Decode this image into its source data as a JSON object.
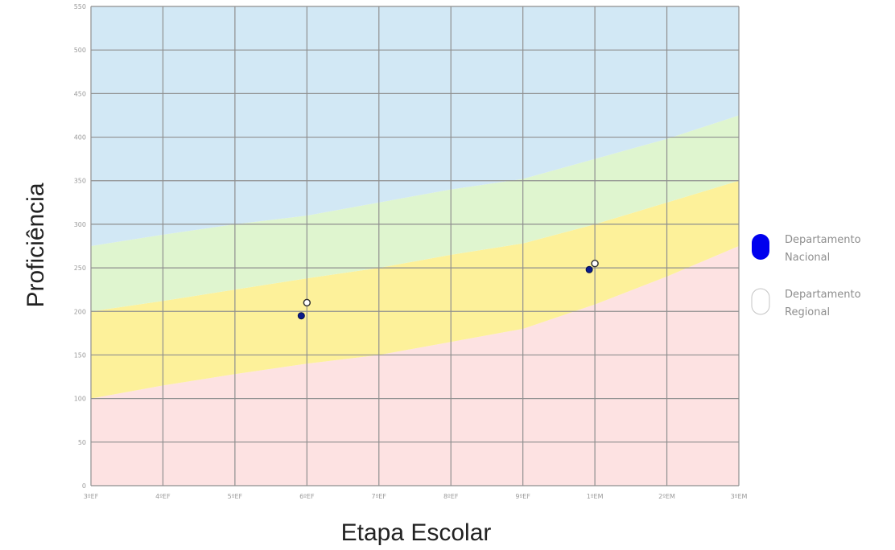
{
  "chart_data": {
    "type": "scatter",
    "title": "",
    "xlabel": "Etapa Escolar",
    "ylabel": "Proficiência",
    "categories": [
      "3ºEF",
      "4ºEF",
      "5ºEF",
      "6ºEF",
      "7ºEF",
      "8ºEF",
      "9ºEF",
      "1ºEM",
      "2ºEM",
      "3ºEM"
    ],
    "ylim": [
      0,
      550
    ],
    "yticks": [
      0,
      50,
      100,
      150,
      200,
      250,
      300,
      350,
      400,
      450,
      500,
      550
    ],
    "grid": true,
    "legend_position": "right",
    "bands": [
      {
        "color": "#fde2e2",
        "lower": [
          0,
          0,
          0,
          0,
          0,
          0,
          0,
          0,
          0,
          0
        ],
        "upper": [
          100,
          115,
          128,
          140,
          150,
          165,
          180,
          208,
          240,
          275
        ]
      },
      {
        "color": "#fdf19a",
        "lower": [
          100,
          115,
          128,
          140,
          150,
          165,
          180,
          208,
          240,
          275
        ],
        "upper": [
          200,
          212,
          225,
          238,
          250,
          265,
          278,
          300,
          325,
          350
        ]
      },
      {
        "color": "#dff5cf",
        "lower": [
          200,
          212,
          225,
          238,
          250,
          265,
          278,
          300,
          325,
          350
        ],
        "upper": [
          275,
          288,
          300,
          310,
          325,
          340,
          352,
          375,
          398,
          425
        ]
      },
      {
        "color": "#d2e8f5",
        "lower": [
          275,
          288,
          300,
          310,
          325,
          340,
          352,
          375,
          398,
          425
        ],
        "upper": [
          550,
          550,
          550,
          550,
          550,
          550,
          550,
          550,
          550,
          550
        ]
      }
    ],
    "series": [
      {
        "name": "Departamento Nacional",
        "color": "#0a1a8c",
        "marker": "filled",
        "points": [
          {
            "x": "6ºEF",
            "y": 195
          },
          {
            "x": "1ºEM",
            "y": 248
          }
        ]
      },
      {
        "name": "Departamento Regional",
        "color": "#ffffff",
        "marker": "hollow",
        "points": [
          {
            "x": "6ºEF",
            "y": 210
          },
          {
            "x": "1ºEM",
            "y": 255
          }
        ]
      }
    ],
    "legend": [
      {
        "line1": "Departamento",
        "line2": "Nacional",
        "color": "#0000ee",
        "style": "filled"
      },
      {
        "line1": "Departamento",
        "line2": "Regional",
        "color": "#ffffff",
        "style": "hollow"
      }
    ]
  }
}
